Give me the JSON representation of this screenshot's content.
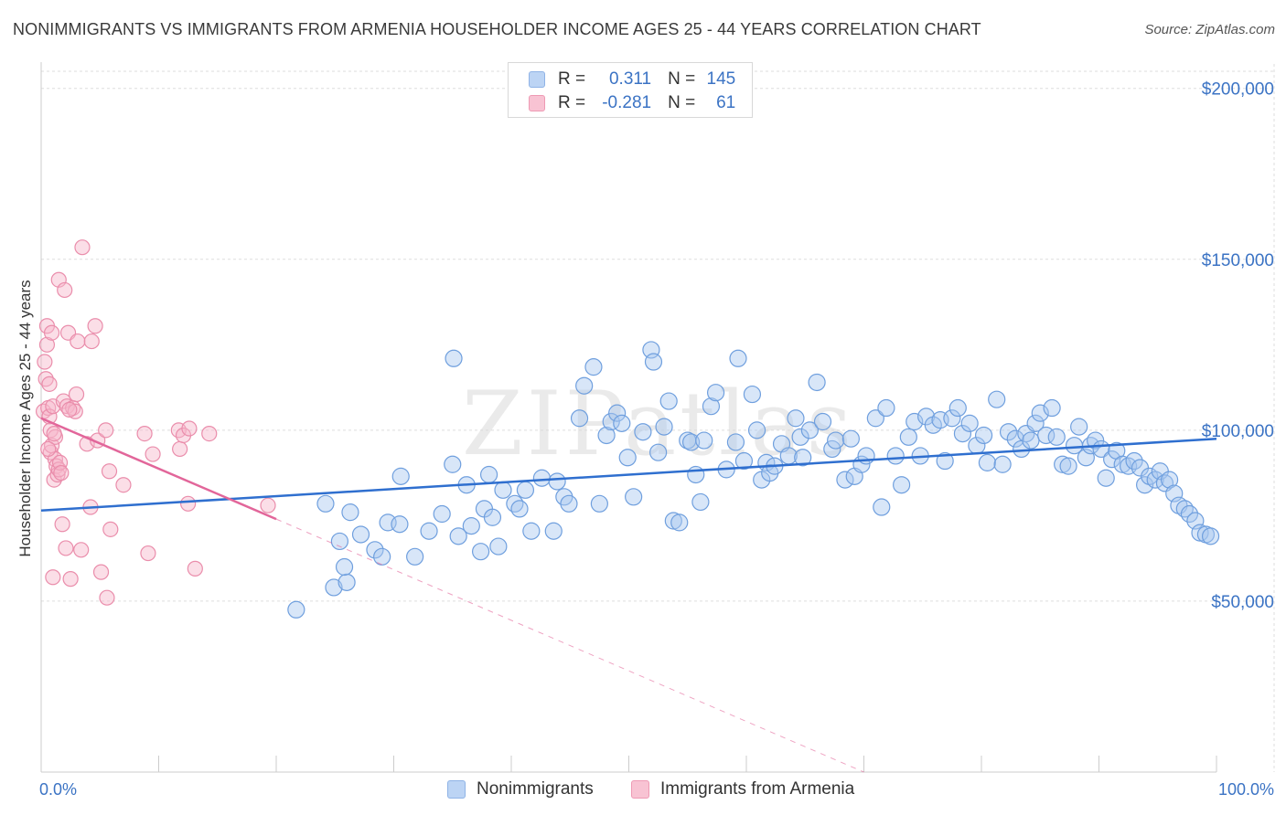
{
  "title": "NONIMMIGRANTS VS IMMIGRANTS FROM ARMENIA HOUSEHOLDER INCOME AGES 25 - 44 YEARS CORRELATION CHART",
  "source": "Source: ZipAtlas.com",
  "watermark": "ZIPatlas",
  "legend": {
    "series1": {
      "r_label": "R =",
      "r_value": "0.311",
      "n_label": "N =",
      "n_value": "145"
    },
    "series2": {
      "r_label": "R =",
      "r_value": "-0.281",
      "n_label": "N =",
      "n_value": "61"
    }
  },
  "bottom_legend": {
    "item1": "Nonimmigrants",
    "item2": "Immigrants from Armenia"
  },
  "colors": {
    "blue_fill": "#a9c8f0",
    "blue_stroke": "#6f9fde",
    "blue_line": "#2f6fcf",
    "pink_fill": "#f7b5c9",
    "pink_stroke": "#ea8dab",
    "pink_line": "#e2669a",
    "grid": "#dddddd",
    "tick_text": "#3b73c4"
  },
  "chart_data": {
    "type": "scatter",
    "title": "NONIMMIGRANTS VS IMMIGRANTS FROM ARMENIA HOUSEHOLDER INCOME AGES 25 - 44 YEARS CORRELATION CHART",
    "xlabel": "",
    "ylabel": "Householder Income Ages 25 - 44 years",
    "xlim": [
      0,
      100
    ],
    "ylim": [
      0,
      205000
    ],
    "x_tick_labels": [
      "0.0%",
      "100.0%"
    ],
    "y_ticks": [
      50000,
      100000,
      150000,
      200000
    ],
    "y_tick_labels": [
      "$50,000",
      "$100,000",
      "$150,000",
      "$200,000"
    ],
    "grid": true,
    "legend_position": "top-center",
    "series": [
      {
        "name": "Nonimmigrants",
        "r": 0.311,
        "n": 145,
        "trend": {
          "x0": 0,
          "y0": 76500,
          "x1": 100,
          "y1": 97500
        },
        "points": [
          [
            21.7,
            47500
          ],
          [
            24.9,
            54000
          ],
          [
            26.0,
            55500
          ],
          [
            25.8,
            60000
          ],
          [
            25.4,
            67500
          ],
          [
            24.2,
            78500
          ],
          [
            26.3,
            76000
          ],
          [
            27.2,
            69500
          ],
          [
            28.4,
            65000
          ],
          [
            29.0,
            63000
          ],
          [
            29.5,
            73000
          ],
          [
            30.5,
            72500
          ],
          [
            30.6,
            86500
          ],
          [
            31.8,
            63000
          ],
          [
            33.0,
            70500
          ],
          [
            34.1,
            75500
          ],
          [
            35.0,
            90000
          ],
          [
            35.1,
            121000
          ],
          [
            35.5,
            69000
          ],
          [
            36.2,
            84000
          ],
          [
            36.6,
            72000
          ],
          [
            37.4,
            64500
          ],
          [
            37.7,
            77000
          ],
          [
            38.1,
            87000
          ],
          [
            38.4,
            74500
          ],
          [
            38.9,
            66000
          ],
          [
            39.3,
            82500
          ],
          [
            40.3,
            78500
          ],
          [
            40.7,
            77000
          ],
          [
            41.2,
            82500
          ],
          [
            41.7,
            70500
          ],
          [
            42.6,
            86000
          ],
          [
            43.6,
            70500
          ],
          [
            43.9,
            85000
          ],
          [
            44.5,
            80500
          ],
          [
            44.9,
            78500
          ],
          [
            45.8,
            103500
          ],
          [
            46.2,
            113000
          ],
          [
            47.0,
            118500
          ],
          [
            47.5,
            78500
          ],
          [
            48.1,
            98500
          ],
          [
            48.5,
            102500
          ],
          [
            49.0,
            105000
          ],
          [
            49.4,
            102000
          ],
          [
            49.9,
            92000
          ],
          [
            50.4,
            80500
          ],
          [
            51.2,
            99500
          ],
          [
            51.9,
            123500
          ],
          [
            52.1,
            120000
          ],
          [
            52.5,
            93500
          ],
          [
            53.0,
            101000
          ],
          [
            53.4,
            108500
          ],
          [
            53.8,
            73500
          ],
          [
            54.3,
            73000
          ],
          [
            55.0,
            97000
          ],
          [
            55.3,
            96500
          ],
          [
            55.7,
            87000
          ],
          [
            56.1,
            79000
          ],
          [
            56.4,
            97000
          ],
          [
            57.0,
            107000
          ],
          [
            57.4,
            111000
          ],
          [
            58.3,
            88500
          ],
          [
            59.1,
            96500
          ],
          [
            59.3,
            121000
          ],
          [
            59.8,
            91000
          ],
          [
            60.5,
            110500
          ],
          [
            60.9,
            100000
          ],
          [
            61.3,
            85500
          ],
          [
            61.7,
            90500
          ],
          [
            62.0,
            87500
          ],
          [
            62.4,
            89500
          ],
          [
            63.0,
            96000
          ],
          [
            63.6,
            92500
          ],
          [
            64.2,
            103500
          ],
          [
            64.6,
            98000
          ],
          [
            64.8,
            92000
          ],
          [
            65.4,
            100000
          ],
          [
            66.0,
            114000
          ],
          [
            66.5,
            102500
          ],
          [
            67.3,
            94500
          ],
          [
            67.6,
            97000
          ],
          [
            68.4,
            85500
          ],
          [
            68.9,
            97500
          ],
          [
            69.2,
            86500
          ],
          [
            69.8,
            90000
          ],
          [
            70.2,
            92500
          ],
          [
            71.0,
            103500
          ],
          [
            71.5,
            77500
          ],
          [
            71.9,
            106500
          ],
          [
            72.7,
            92500
          ],
          [
            73.2,
            84000
          ],
          [
            73.8,
            98000
          ],
          [
            74.3,
            102500
          ],
          [
            74.8,
            92500
          ],
          [
            75.3,
            104000
          ],
          [
            75.9,
            101500
          ],
          [
            76.5,
            103000
          ],
          [
            76.9,
            91000
          ],
          [
            77.5,
            103500
          ],
          [
            78.0,
            106500
          ],
          [
            78.4,
            99000
          ],
          [
            79.0,
            102000
          ],
          [
            79.6,
            95500
          ],
          [
            80.2,
            98500
          ],
          [
            80.5,
            90500
          ],
          [
            81.3,
            109000
          ],
          [
            81.8,
            90000
          ],
          [
            82.3,
            99500
          ],
          [
            82.9,
            97500
          ],
          [
            83.4,
            94500
          ],
          [
            83.8,
            99000
          ],
          [
            84.2,
            97000
          ],
          [
            84.6,
            102000
          ],
          [
            85.0,
            105000
          ],
          [
            85.5,
            98500
          ],
          [
            86.0,
            106500
          ],
          [
            86.4,
            98000
          ],
          [
            86.9,
            90000
          ],
          [
            87.4,
            89500
          ],
          [
            87.9,
            95500
          ],
          [
            88.3,
            101000
          ],
          [
            88.9,
            92000
          ],
          [
            89.3,
            95500
          ],
          [
            89.7,
            97000
          ],
          [
            90.2,
            94500
          ],
          [
            90.6,
            86000
          ],
          [
            91.1,
            91500
          ],
          [
            91.5,
            94000
          ],
          [
            92.0,
            90000
          ],
          [
            92.5,
            89500
          ],
          [
            93.0,
            91000
          ],
          [
            93.5,
            89000
          ],
          [
            93.9,
            84000
          ],
          [
            94.3,
            86500
          ],
          [
            94.8,
            85500
          ],
          [
            95.2,
            88000
          ],
          [
            95.6,
            84500
          ],
          [
            96.0,
            85500
          ],
          [
            96.4,
            81500
          ],
          [
            96.8,
            78000
          ],
          [
            97.3,
            77000
          ],
          [
            97.7,
            75500
          ],
          [
            98.2,
            73500
          ],
          [
            98.6,
            70000
          ],
          [
            99.1,
            69500
          ],
          [
            99.5,
            69000
          ]
        ]
      },
      {
        "name": "Immigrants from Armenia",
        "r": -0.281,
        "n": 61,
        "trend": {
          "x0": 0,
          "y0": 103500,
          "x1": 20,
          "y1": 74000
        },
        "trend_dashed_extension": {
          "x0": 20,
          "y0": 74000,
          "x1": 70,
          "y1": 0
        },
        "points": [
          [
            0.2,
            105500
          ],
          [
            0.3,
            120000
          ],
          [
            0.4,
            115000
          ],
          [
            0.5,
            125000
          ],
          [
            0.5,
            130500
          ],
          [
            0.6,
            106500
          ],
          [
            0.7,
            113500
          ],
          [
            0.7,
            104000
          ],
          [
            0.8,
            93500
          ],
          [
            0.8,
            100000
          ],
          [
            0.9,
            128500
          ],
          [
            0.9,
            95500
          ],
          [
            1.0,
            57000
          ],
          [
            1.0,
            107000
          ],
          [
            1.1,
            85500
          ],
          [
            1.2,
            91500
          ],
          [
            1.2,
            98000
          ],
          [
            1.3,
            89500
          ],
          [
            1.4,
            87000
          ],
          [
            1.5,
            144000
          ],
          [
            1.5,
            88500
          ],
          [
            1.6,
            90500
          ],
          [
            1.7,
            87500
          ],
          [
            1.8,
            72500
          ],
          [
            1.9,
            108500
          ],
          [
            2.0,
            141000
          ],
          [
            2.1,
            65500
          ],
          [
            2.2,
            107000
          ],
          [
            2.3,
            128500
          ],
          [
            2.5,
            56500
          ],
          [
            2.7,
            106500
          ],
          [
            2.9,
            105500
          ],
          [
            3.1,
            126000
          ],
          [
            3.4,
            65000
          ],
          [
            3.5,
            153500
          ],
          [
            3.9,
            96000
          ],
          [
            4.2,
            77500
          ],
          [
            4.3,
            126000
          ],
          [
            4.6,
            130500
          ],
          [
            4.8,
            97000
          ],
          [
            5.1,
            58500
          ],
          [
            5.5,
            100000
          ],
          [
            5.6,
            51000
          ],
          [
            5.8,
            88000
          ],
          [
            5.9,
            71000
          ],
          [
            7.0,
            84000
          ],
          [
            8.8,
            99000
          ],
          [
            9.1,
            64000
          ],
          [
            9.5,
            93000
          ],
          [
            11.7,
            100000
          ],
          [
            11.8,
            94500
          ],
          [
            12.1,
            98500
          ],
          [
            12.5,
            78500
          ],
          [
            12.6,
            100500
          ],
          [
            13.1,
            59500
          ],
          [
            14.3,
            99000
          ],
          [
            19.3,
            78000
          ],
          [
            0.6,
            94500
          ],
          [
            1.1,
            99000
          ],
          [
            2.4,
            106000
          ],
          [
            3.0,
            110500
          ]
        ]
      }
    ]
  }
}
